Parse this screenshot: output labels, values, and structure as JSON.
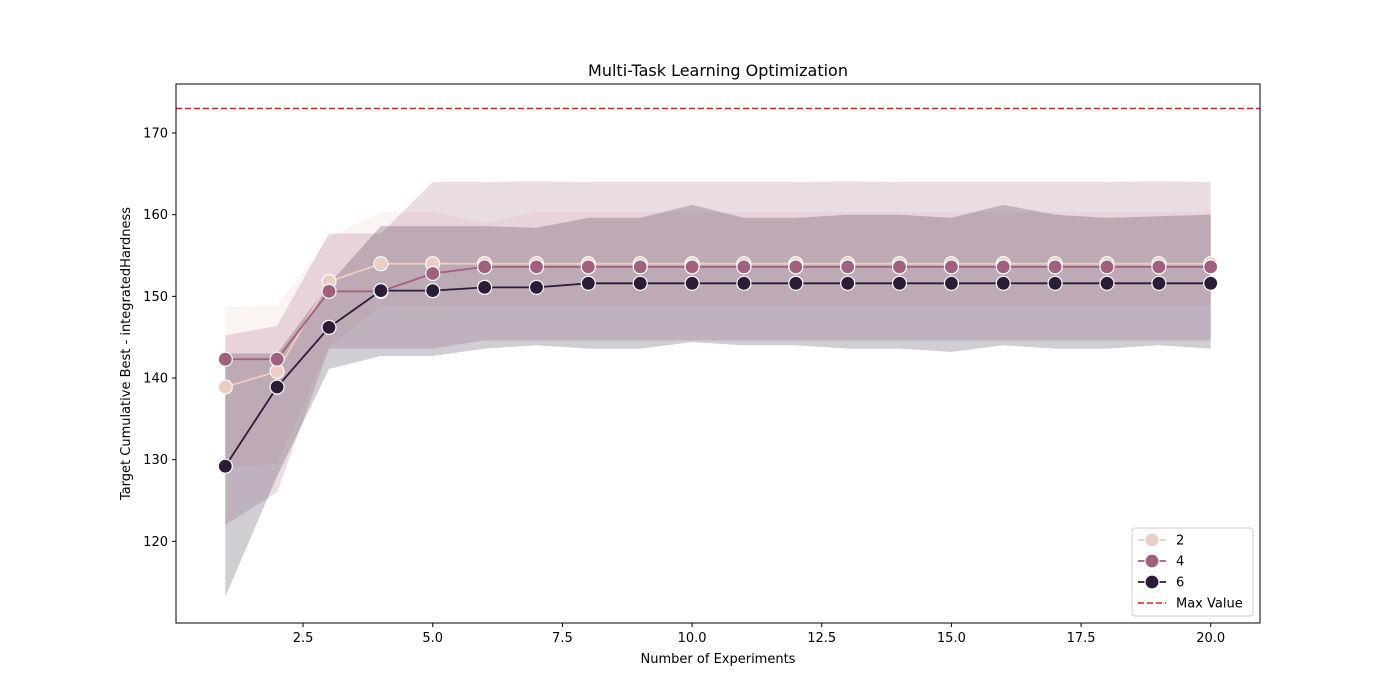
{
  "chart_data": {
    "type": "line",
    "title": "Multi-Task Learning Optimization",
    "xlabel": "Number of Experiments",
    "ylabel": "Target Cumulative Best - integratedHardness",
    "xlim": [
      0.05,
      20.95
    ],
    "ylim": [
      110,
      176
    ],
    "xticks": [
      2.5,
      5.0,
      7.5,
      10.0,
      12.5,
      15.0,
      17.5,
      20.0
    ],
    "xtick_labels": [
      "2.5",
      "5.0",
      "7.5",
      "10.0",
      "12.5",
      "15.0",
      "17.5",
      "20.0"
    ],
    "yticks": [
      120,
      130,
      140,
      150,
      160,
      170
    ],
    "ytick_labels": [
      "120",
      "130",
      "140",
      "150",
      "160",
      "170"
    ],
    "grid": false,
    "legend_position": "bottom-right",
    "x": [
      1,
      2,
      3,
      4,
      5,
      6,
      7,
      8,
      9,
      10,
      11,
      12,
      13,
      14,
      15,
      16,
      17,
      18,
      19,
      20
    ],
    "series": [
      {
        "name": "2",
        "color": "#ebcdc3",
        "values": [
          138.9,
          140.8,
          151.8,
          154.0,
          154.0,
          154.0,
          154.0,
          154.0,
          154.0,
          154.0,
          154.0,
          154.0,
          154.0,
          154.0,
          154.0,
          154.0,
          154.0,
          154.0,
          154.0,
          154.0
        ],
        "lower": [
          129.0,
          129.5,
          143.8,
          148.8,
          148.8,
          148.8,
          148.8,
          148.8,
          148.8,
          148.8,
          148.8,
          148.8,
          148.8,
          148.8,
          148.8,
          148.8,
          148.8,
          148.8,
          148.8,
          148.8
        ],
        "upper": [
          148.7,
          148.9,
          157.2,
          160.3,
          160.3,
          159.0,
          160.3,
          160.3,
          160.3,
          160.3,
          160.3,
          160.3,
          160.3,
          160.3,
          160.3,
          160.3,
          160.3,
          160.3,
          160.3,
          160.3
        ]
      },
      {
        "name": "4",
        "color": "#a0607e",
        "values": [
          142.3,
          142.3,
          150.6,
          150.6,
          152.8,
          153.6,
          153.6,
          153.6,
          153.6,
          153.6,
          153.6,
          153.6,
          153.6,
          153.6,
          153.6,
          153.6,
          153.6,
          153.6,
          153.6,
          153.6
        ],
        "lower": [
          122.0,
          126.0,
          143.6,
          143.6,
          143.6,
          144.6,
          144.6,
          144.6,
          144.6,
          144.6,
          144.6,
          144.6,
          144.6,
          144.6,
          144.6,
          144.6,
          144.6,
          144.6,
          144.6,
          144.6
        ],
        "upper": [
          145.2,
          146.4,
          157.7,
          157.7,
          164.0,
          164.0,
          164.1,
          164.0,
          164.0,
          164.0,
          164.0,
          164.0,
          164.1,
          164.0,
          164.0,
          164.0,
          164.0,
          164.0,
          164.1,
          164.0
        ]
      },
      {
        "name": "6",
        "color": "#2b1d38",
        "values": [
          129.2,
          138.9,
          146.2,
          150.7,
          150.7,
          151.1,
          151.1,
          151.6,
          151.6,
          151.6,
          151.6,
          151.6,
          151.6,
          151.6,
          151.6,
          151.6,
          151.6,
          151.6,
          151.6,
          151.6
        ],
        "lower": [
          113.2,
          128.0,
          141.1,
          142.7,
          142.7,
          143.6,
          144.0,
          143.6,
          143.6,
          144.4,
          144.0,
          144.0,
          143.6,
          143.6,
          143.2,
          144.0,
          143.6,
          143.6,
          144.0,
          143.6
        ],
        "upper": [
          143.0,
          143.0,
          151.5,
          158.6,
          158.6,
          158.6,
          158.4,
          159.6,
          159.6,
          161.2,
          159.6,
          159.6,
          160.0,
          160.0,
          159.6,
          161.2,
          160.0,
          159.6,
          159.8,
          160.0
        ]
      }
    ],
    "reference_line": {
      "name": "Max Value",
      "y": 173,
      "color": "#e0201b",
      "style": "dashed"
    }
  }
}
